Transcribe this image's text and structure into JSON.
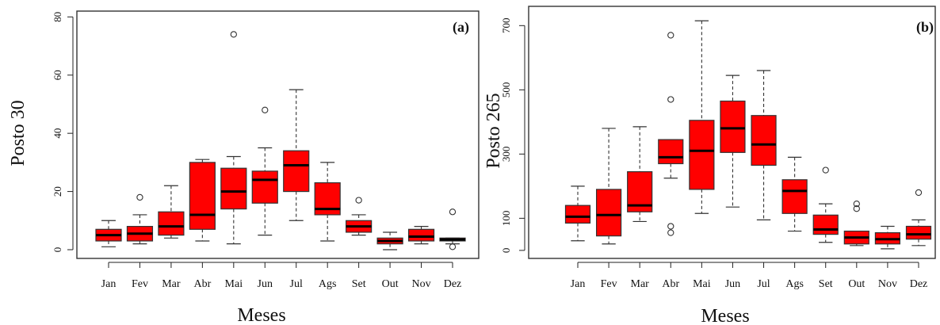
{
  "chart_data": [
    {
      "type": "boxplot",
      "panel_label": "(a)",
      "xlabel": "Meses",
      "ylabel": "Posto 30",
      "ylim": [
        -3,
        82
      ],
      "yticks": [
        0,
        20,
        40,
        60,
        80
      ],
      "box_color": "#ff0000",
      "categories": [
        "Jan",
        "Fev",
        "Mar",
        "Abr",
        "Mai",
        "Jun",
        "Jul",
        "Ags",
        "Set",
        "Out",
        "Nov",
        "Dez"
      ],
      "boxes": [
        {
          "min": 1,
          "q1": 3,
          "median": 5,
          "q3": 7,
          "max": 10,
          "outliers": []
        },
        {
          "min": 2,
          "q1": 3,
          "median": 5.5,
          "q3": 8,
          "max": 12,
          "outliers": [
            18
          ]
        },
        {
          "min": 4,
          "q1": 5,
          "median": 8,
          "q3": 13,
          "max": 22,
          "outliers": []
        },
        {
          "min": 3,
          "q1": 7,
          "median": 12,
          "q3": 30,
          "max": 31,
          "outliers": []
        },
        {
          "min": 2,
          "q1": 14,
          "median": 20,
          "q3": 28,
          "max": 32,
          "outliers": [
            74
          ]
        },
        {
          "min": 5,
          "q1": 16,
          "median": 24,
          "q3": 27,
          "max": 35,
          "outliers": [
            48
          ]
        },
        {
          "min": 10,
          "q1": 20,
          "median": 29,
          "q3": 34,
          "max": 55,
          "outliers": []
        },
        {
          "min": 3,
          "q1": 12,
          "median": 14,
          "q3": 23,
          "max": 30,
          "outliers": []
        },
        {
          "min": 5,
          "q1": 6,
          "median": 8,
          "q3": 10,
          "max": 12,
          "outliers": [
            17
          ]
        },
        {
          "min": 0,
          "q1": 2,
          "median": 3,
          "q3": 4,
          "max": 6,
          "outliers": []
        },
        {
          "min": 2,
          "q1": 3,
          "median": 4.5,
          "q3": 7,
          "max": 8,
          "outliers": []
        },
        {
          "min": 2,
          "q1": 3,
          "median": 3.5,
          "q3": 4,
          "max": 4,
          "outliers": [
            13,
            1
          ]
        }
      ]
    },
    {
      "type": "boxplot",
      "panel_label": "(b)",
      "xlabel": "Meses",
      "ylabel": "Posto 265",
      "ylim": [
        -25,
        760
      ],
      "yticks": [
        0,
        100,
        300,
        500,
        700
      ],
      "box_color": "#ff0000",
      "categories": [
        "Jan",
        "Fev",
        "Mar",
        "Abr",
        "Mai",
        "Jun",
        "Jul",
        "Ags",
        "Set",
        "Out",
        "Nov",
        "Dez"
      ],
      "boxes": [
        {
          "min": 30,
          "q1": 85,
          "median": 105,
          "q3": 140,
          "max": 200,
          "outliers": []
        },
        {
          "min": 20,
          "q1": 45,
          "median": 110,
          "q3": 190,
          "max": 380,
          "outliers": []
        },
        {
          "min": 90,
          "q1": 120,
          "median": 140,
          "q3": 245,
          "max": 385,
          "outliers": []
        },
        {
          "min": 225,
          "q1": 270,
          "median": 290,
          "q3": 345,
          "max": 345,
          "outliers": [
            670,
            470,
            75,
            55
          ]
        },
        {
          "min": 115,
          "q1": 190,
          "median": 310,
          "q3": 405,
          "max": 715,
          "outliers": []
        },
        {
          "min": 135,
          "q1": 305,
          "median": 380,
          "q3": 465,
          "max": 545,
          "outliers": []
        },
        {
          "min": 95,
          "q1": 265,
          "median": 330,
          "q3": 420,
          "max": 560,
          "outliers": []
        },
        {
          "min": 60,
          "q1": 115,
          "median": 185,
          "q3": 220,
          "max": 290,
          "outliers": []
        },
        {
          "min": 25,
          "q1": 50,
          "median": 65,
          "q3": 110,
          "max": 145,
          "outliers": [
            250
          ]
        },
        {
          "min": 15,
          "q1": 20,
          "median": 40,
          "q3": 60,
          "max": 60,
          "outliers": [
            145,
            130
          ]
        },
        {
          "min": 5,
          "q1": 20,
          "median": 35,
          "q3": 55,
          "max": 75,
          "outliers": []
        },
        {
          "min": 15,
          "q1": 35,
          "median": 50,
          "q3": 75,
          "max": 95,
          "outliers": [
            180
          ]
        }
      ]
    }
  ]
}
